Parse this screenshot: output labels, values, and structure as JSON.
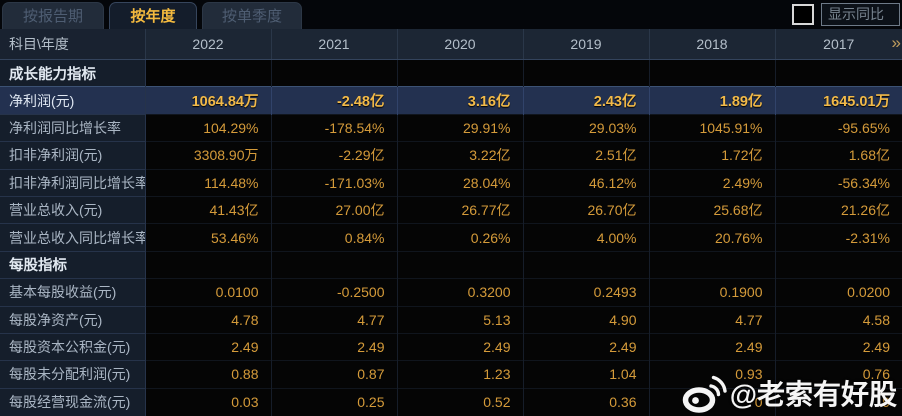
{
  "tabs": [
    {
      "label": "按报告期",
      "active": false
    },
    {
      "label": "按年度",
      "active": true
    },
    {
      "label": "按单季度",
      "active": false
    }
  ],
  "controls": {
    "show_yoy_label": "显示同比",
    "yoy_checkbox_checked": false
  },
  "table": {
    "corner_header": "科目\\年度",
    "year_columns": [
      "2022",
      "2021",
      "2020",
      "2019",
      "2018",
      "2017"
    ],
    "more_icon": "»",
    "rows": [
      {
        "type": "section",
        "label": "成长能力指标",
        "values": [
          "",
          "",
          "",
          "",
          "",
          ""
        ]
      },
      {
        "type": "highlight",
        "label": "净利润(元)",
        "values": [
          "1064.84万",
          "-2.48亿",
          "3.16亿",
          "2.43亿",
          "1.89亿",
          "1645.01万"
        ]
      },
      {
        "type": "data",
        "label": "净利润同比增长率",
        "values": [
          "104.29%",
          "-178.54%",
          "29.91%",
          "29.03%",
          "1045.91%",
          "-95.65%"
        ]
      },
      {
        "type": "data",
        "label": "扣非净利润(元)",
        "values": [
          "3308.90万",
          "-2.29亿",
          "3.22亿",
          "2.51亿",
          "1.72亿",
          "1.68亿"
        ]
      },
      {
        "type": "data",
        "label": "扣非净利润同比增长率",
        "values": [
          "114.48%",
          "-171.03%",
          "28.04%",
          "46.12%",
          "2.49%",
          "-56.34%"
        ]
      },
      {
        "type": "data",
        "label": "营业总收入(元)",
        "values": [
          "41.43亿",
          "27.00亿",
          "26.77亿",
          "26.70亿",
          "25.68亿",
          "21.26亿"
        ]
      },
      {
        "type": "data",
        "label": "营业总收入同比增长率",
        "values": [
          "53.46%",
          "0.84%",
          "0.26%",
          "4.00%",
          "20.76%",
          "-2.31%"
        ]
      },
      {
        "type": "section",
        "label": "每股指标",
        "values": [
          "",
          "",
          "",
          "",
          "",
          ""
        ]
      },
      {
        "type": "data",
        "label": "基本每股收益(元)",
        "values": [
          "0.0100",
          "-0.2500",
          "0.3200",
          "0.2493",
          "0.1900",
          "0.0200"
        ]
      },
      {
        "type": "data",
        "label": "每股净资产(元)",
        "values": [
          "4.78",
          "4.77",
          "5.13",
          "4.90",
          "4.77",
          "4.58"
        ]
      },
      {
        "type": "data",
        "label": "每股资本公积金(元)",
        "values": [
          "2.49",
          "2.49",
          "2.49",
          "2.49",
          "2.49",
          "2.49"
        ]
      },
      {
        "type": "data",
        "label": "每股未分配利润(元)",
        "values": [
          "0.88",
          "0.87",
          "1.23",
          "1.04",
          "0.93",
          "0.76"
        ]
      },
      {
        "type": "data",
        "label": "每股经营现金流(元)",
        "values": [
          "0.03",
          "0.25",
          "0.52",
          "0.36",
          "0",
          "9"
        ]
      }
    ]
  },
  "watermark": {
    "icon": "weibo-icon",
    "handle": "@老索有好股"
  },
  "colors": {
    "accent": "#f2ba49",
    "value-text": "#d59b3a",
    "highlight-bg": "#233150",
    "tab-active-text": "#f4ba3e"
  }
}
